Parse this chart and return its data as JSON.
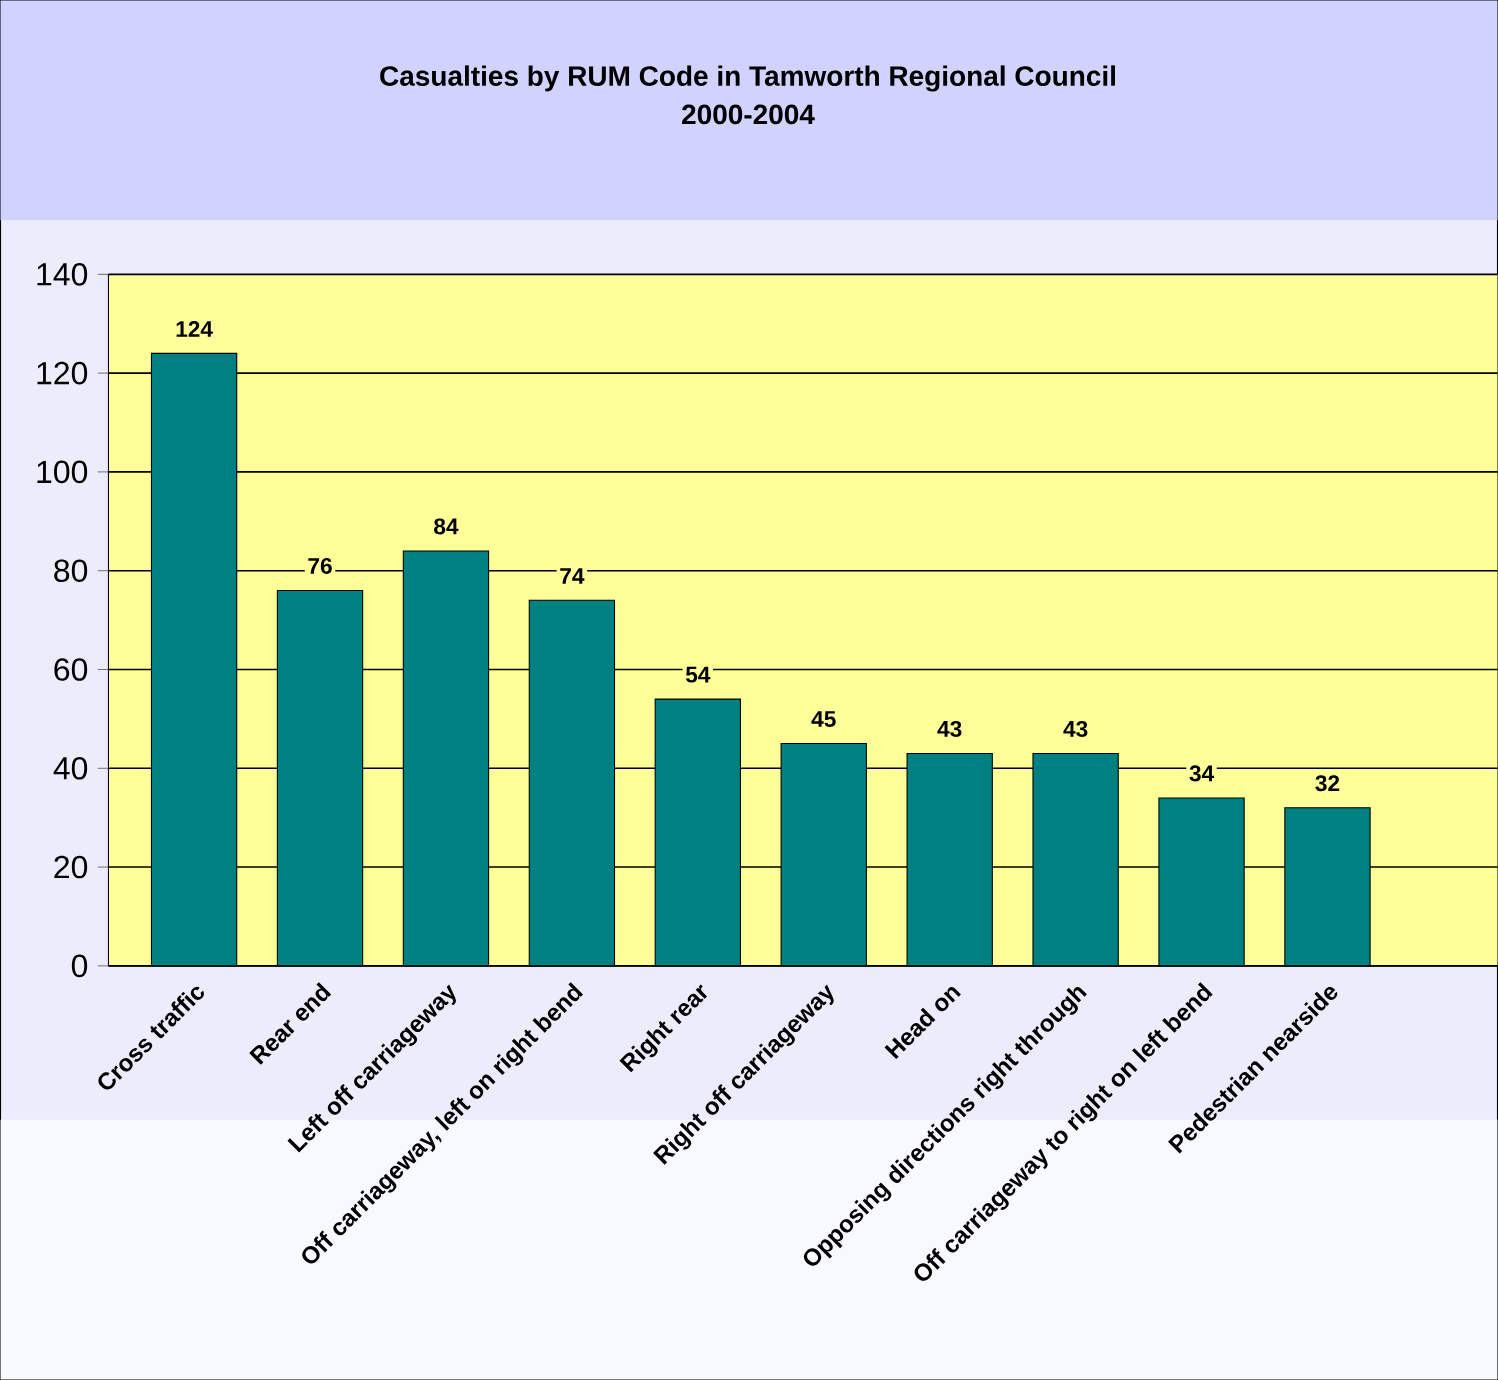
{
  "chart_data": {
    "type": "bar",
    "title": "Casualties by RUM Code in Tamworth Regional Council",
    "subtitle": "2000-2004",
    "categories": [
      "Cross traffic",
      "Rear end",
      "Left off carriageway",
      "Off carriageway, left on right bend",
      "Right rear",
      "Right off carriageway",
      "Head on",
      "Opposing directions right through",
      "Off carriageway to right on left bend",
      "Pedestrian nearside"
    ],
    "values": [
      124,
      76,
      84,
      74,
      54,
      45,
      43,
      43,
      34,
      32
    ],
    "color": "#008080",
    "ylim": [
      0,
      140
    ],
    "yticks": [
      0,
      20,
      40,
      60,
      80,
      100,
      120,
      140
    ],
    "grid": "y",
    "data_labels": true
  }
}
